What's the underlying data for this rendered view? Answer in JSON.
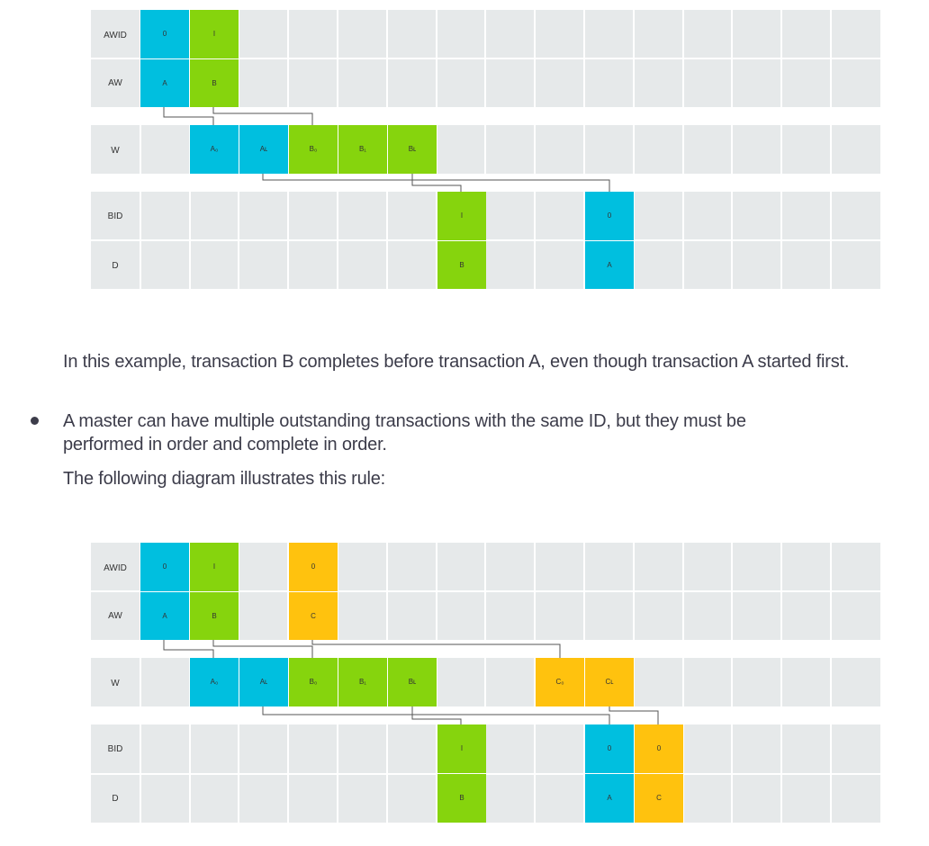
{
  "diagram1": {
    "rows": {
      "awid": "AWID",
      "aw": "AW",
      "w": "W",
      "bid": "BID",
      "d": "D"
    },
    "cells": {
      "awid_0": "0",
      "awid_1": "I",
      "aw_a": "A",
      "aw_b": "B",
      "w_a0": "A₀",
      "w_al": "Aʟ",
      "w_b0": "B₀",
      "w_b1": "B₁",
      "w_bl": "Bʟ",
      "bid_1": "I",
      "bid_0": "0",
      "d_b": "B",
      "d_a": "A"
    }
  },
  "diagram2": {
    "rows": {
      "awid": "AWID",
      "aw": "AW",
      "w": "W",
      "bid": "BID",
      "d": "D"
    },
    "cells": {
      "awid_0": "0",
      "awid_1": "I",
      "awid_c0": "0",
      "aw_a": "A",
      "aw_b": "B",
      "aw_c": "C",
      "w_a0": "A₀",
      "w_al": "Aʟ",
      "w_b0": "B₀",
      "w_b1": "B₁",
      "w_bl": "Bʟ",
      "w_c0": "C₀",
      "w_cl": "Cʟ",
      "bid_1": "I",
      "bid_0": "0",
      "bid_c0": "0",
      "d_b": "B",
      "d_a": "A",
      "d_c": "C"
    }
  },
  "text": {
    "para1": "In this example, transaction B completes before transaction A, even though transaction A started first.",
    "bullet1": "A master can have multiple outstanding transactions with the same ID, but they must be performed in order and complete in order.",
    "para2": "The following diagram illustrates this rule:"
  },
  "colors": {
    "cyan": "#00bfdf",
    "green": "#86d40d",
    "orange": "#ffc20e",
    "grid": "#e6e9ea"
  }
}
